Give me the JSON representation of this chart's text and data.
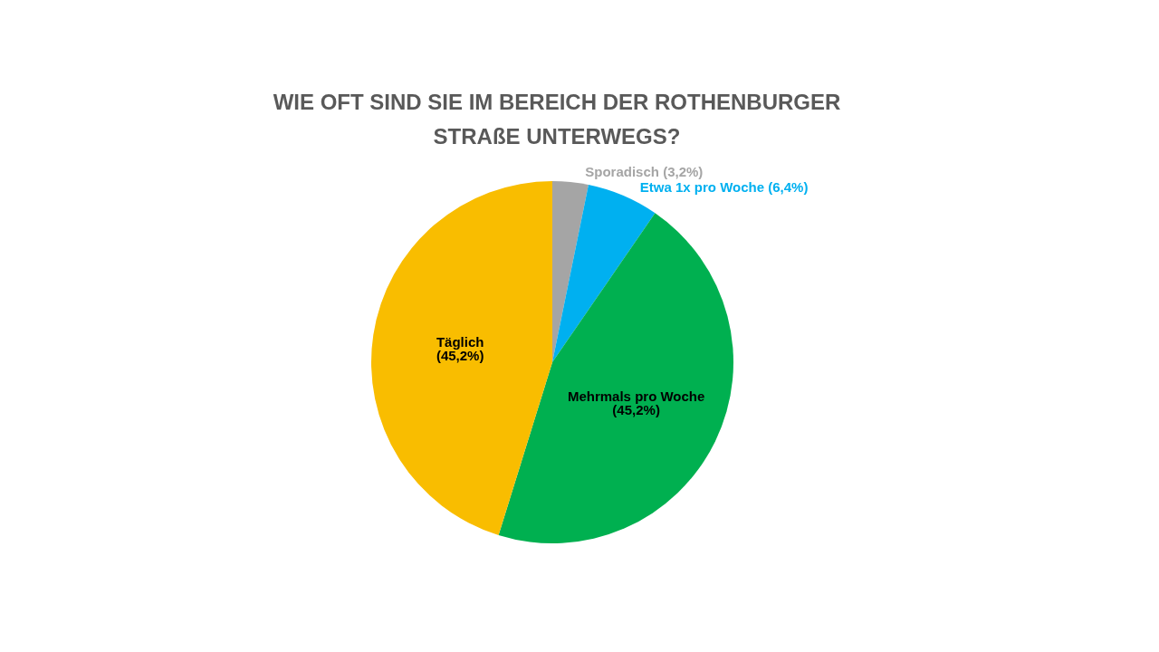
{
  "chart_data": {
    "type": "pie",
    "title": "WIE OFT SIND SIE IM BEREICH DER ROTHENBURGER\nSTRAßE UNTERWEGS?",
    "categories": [
      "Sporadisch",
      "Etwa 1x pro Woche",
      "Mehrmals pro Woche",
      "Täglich"
    ],
    "values": [
      3.2,
      6.4,
      45.2,
      45.2
    ],
    "value_labels": [
      "(3,2%)",
      "(6,4%)",
      "(45,2%)",
      "(45,2%)"
    ],
    "colors": [
      "#a5a5a5",
      "#00b0f0",
      "#00b050",
      "#f9bd00"
    ],
    "legend": false
  }
}
